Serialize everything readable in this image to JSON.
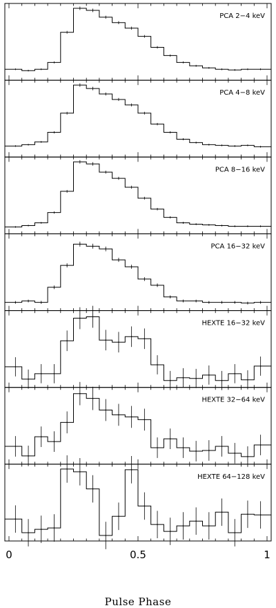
{
  "chart_data": {
    "type": "step",
    "xlabel": "Pulse Phase",
    "xlim": [
      0,
      1
    ],
    "x_ticks": [
      "0",
      "0.5",
      "1"
    ],
    "bins": 20,
    "bin_width": 0.05,
    "panels": [
      {
        "label": "PCA 2−4 keV",
        "ylim": [
          0,
          1
        ],
        "values": [
          0.1,
          0.08,
          0.1,
          0.2,
          0.64,
          0.99,
          0.96,
          0.86,
          0.78,
          0.7,
          0.58,
          0.42,
          0.3,
          0.2,
          0.15,
          0.12,
          0.1,
          0.09,
          0.1,
          0.1
        ],
        "errors": [
          0.012,
          0.012,
          0.012,
          0.015,
          0.02,
          0.025,
          0.025,
          0.022,
          0.022,
          0.022,
          0.02,
          0.018,
          0.016,
          0.015,
          0.014,
          0.013,
          0.013,
          0.013,
          0.013,
          0.013
        ]
      },
      {
        "label": "PCA 4−8 keV",
        "ylim": [
          0,
          1
        ],
        "values": [
          0.1,
          0.12,
          0.16,
          0.3,
          0.58,
          0.99,
          0.94,
          0.86,
          0.78,
          0.7,
          0.58,
          0.42,
          0.3,
          0.2,
          0.15,
          0.12,
          0.11,
          0.1,
          0.11,
          0.09
        ],
        "errors": [
          0.012,
          0.012,
          0.013,
          0.016,
          0.02,
          0.025,
          0.025,
          0.022,
          0.022,
          0.022,
          0.02,
          0.018,
          0.016,
          0.015,
          0.014,
          0.013,
          0.013,
          0.013,
          0.013,
          0.013
        ]
      },
      {
        "label": "PCA 8−16 keV",
        "ylim": [
          0,
          1
        ],
        "values": [
          0.04,
          0.06,
          0.1,
          0.25,
          0.56,
          0.99,
          0.96,
          0.84,
          0.75,
          0.62,
          0.46,
          0.3,
          0.18,
          0.1,
          0.08,
          0.07,
          0.06,
          0.05,
          0.05,
          0.05
        ],
        "errors": [
          0.012,
          0.012,
          0.013,
          0.016,
          0.02,
          0.025,
          0.025,
          0.022,
          0.022,
          0.022,
          0.02,
          0.018,
          0.016,
          0.015,
          0.014,
          0.013,
          0.013,
          0.013,
          0.013,
          0.013
        ]
      },
      {
        "label": "PCA 16−32 keV",
        "ylim": [
          0,
          1
        ],
        "values": [
          0.06,
          0.08,
          0.06,
          0.28,
          0.6,
          0.91,
          0.88,
          0.84,
          0.68,
          0.58,
          0.4,
          0.31,
          0.14,
          0.08,
          0.08,
          0.06,
          0.06,
          0.06,
          0.05,
          0.06
        ],
        "errors": [
          0.02,
          0.02,
          0.022,
          0.026,
          0.03,
          0.036,
          0.036,
          0.034,
          0.03,
          0.03,
          0.028,
          0.026,
          0.022,
          0.02,
          0.02,
          0.02,
          0.02,
          0.02,
          0.02,
          0.02
        ],
        "dots": true
      },
      {
        "label": "HEXTE 16−32 keV",
        "ylim": [
          0,
          1
        ],
        "values": [
          0.24,
          0.06,
          0.14,
          0.14,
          0.62,
          0.95,
          0.97,
          0.63,
          0.6,
          0.68,
          0.65,
          0.27,
          0.04,
          0.08,
          0.07,
          0.12,
          0.04,
          0.14,
          0.05,
          0.25
        ],
        "errors": [
          0.14,
          0.14,
          0.14,
          0.14,
          0.15,
          0.16,
          0.16,
          0.15,
          0.15,
          0.15,
          0.15,
          0.14,
          0.14,
          0.14,
          0.14,
          0.14,
          0.14,
          0.14,
          0.14,
          0.14
        ],
        "dots": true
      },
      {
        "label": "HEXTE 32−64 keV",
        "ylim": [
          0,
          1
        ],
        "values": [
          0.2,
          0.06,
          0.34,
          0.27,
          0.55,
          0.97,
          0.9,
          0.73,
          0.66,
          0.63,
          0.59,
          0.18,
          0.31,
          0.18,
          0.13,
          0.14,
          0.2,
          0.1,
          0.05,
          0.22
        ],
        "errors": [
          0.15,
          0.15,
          0.15,
          0.15,
          0.16,
          0.17,
          0.17,
          0.16,
          0.16,
          0.16,
          0.16,
          0.15,
          0.15,
          0.15,
          0.15,
          0.15,
          0.15,
          0.15,
          0.15,
          0.15
        ],
        "dots": true
      },
      {
        "label": "HEXTE 64−128 keV",
        "ylim": [
          0,
          1
        ],
        "values": [
          0.26,
          0.06,
          0.11,
          0.13,
          0.99,
          0.95,
          0.7,
          0.02,
          0.3,
          0.98,
          0.45,
          0.18,
          0.08,
          0.16,
          0.23,
          0.16,
          0.36,
          0.06,
          0.33,
          0.32
        ],
        "errors": [
          0.2,
          0.2,
          0.2,
          0.2,
          0.2,
          0.2,
          0.2,
          0.2,
          0.2,
          0.2,
          0.2,
          0.2,
          0.2,
          0.2,
          0.2,
          0.2,
          0.2,
          0.2,
          0.2,
          0.2
        ],
        "dots": true
      }
    ]
  }
}
